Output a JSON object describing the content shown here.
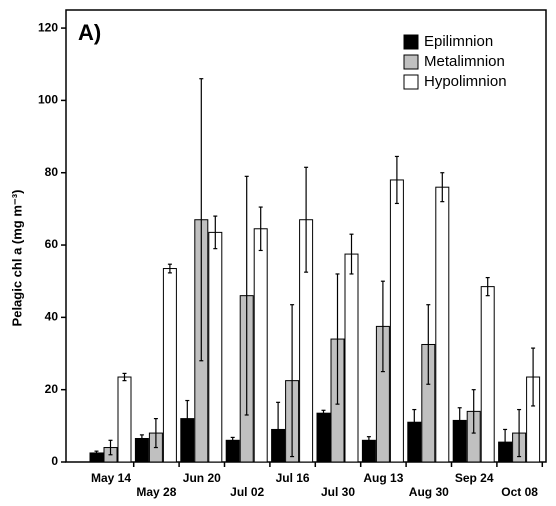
{
  "chart_data": {
    "type": "bar",
    "title": "A)",
    "y_label": "Pelagic chl a (mg m⁻³)",
    "categories": [
      "May 14",
      "May 28",
      "Jun 20",
      "Jul 02",
      "Jul 16",
      "Jul 30",
      "Aug 13",
      "Aug 30",
      "Sep 24",
      "Oct 08"
    ],
    "series": [
      {
        "name": "Epilimnion",
        "color": "#000000",
        "values": [
          2.5,
          6.5,
          12,
          6,
          9,
          13.5,
          6,
          11,
          11.5,
          5.5
        ],
        "errors": [
          0.5,
          1,
          5,
          0.8,
          7.5,
          0.8,
          1,
          3.5,
          3.5,
          3.5
        ]
      },
      {
        "name": "Metalimnion",
        "color": "#c0c0c0",
        "values": [
          4,
          8,
          67,
          46,
          22.5,
          34,
          37.5,
          32.5,
          14,
          8
        ],
        "errors": [
          2,
          4,
          39,
          33,
          21,
          18,
          12.5,
          11,
          6,
          6.5
        ]
      },
      {
        "name": "Hypolimnion",
        "color": "#ffffff",
        "values": [
          23.5,
          53.5,
          63.5,
          64.5,
          67,
          57.5,
          78,
          76,
          48.5,
          23.5
        ],
        "errors": [
          1,
          1.2,
          4.5,
          6,
          14.5,
          5.5,
          6.5,
          4,
          2.5,
          8
        ]
      }
    ],
    "ylim": [
      0,
      125
    ],
    "yticks": [
      0,
      20,
      40,
      60,
      80,
      100,
      120
    ],
    "legend": "upper right"
  }
}
